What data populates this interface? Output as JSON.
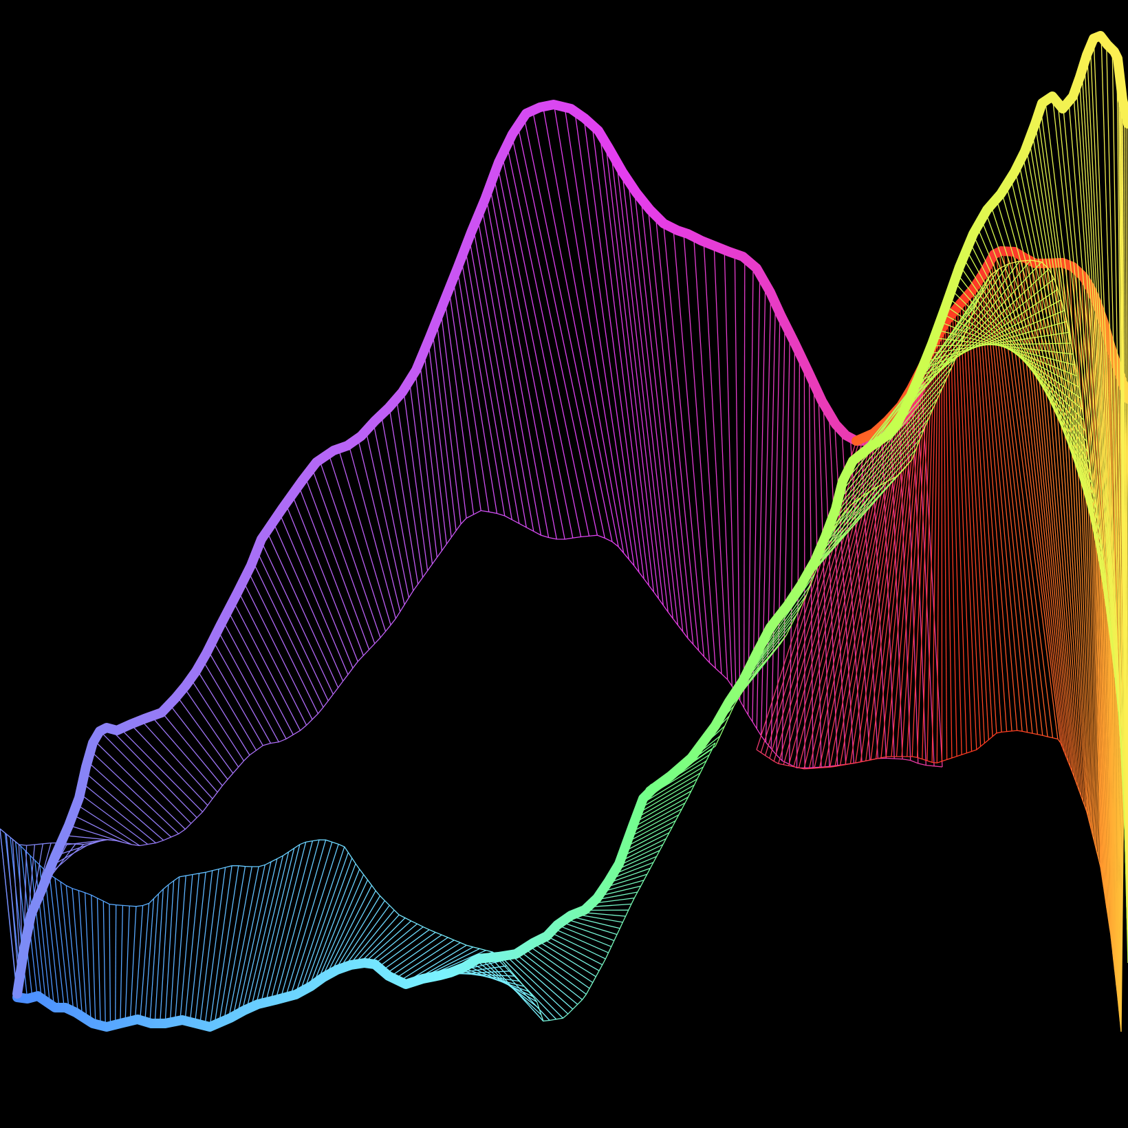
{
  "artwork": {
    "background_color": "#000000",
    "palette": [
      "#4c8dff",
      "#7af2ff",
      "#74ff86",
      "#c6ff4e",
      "#ffee52",
      "#ff3a22",
      "#ec3a9c",
      "#e43ef0",
      "#b468f6",
      "#7b8cf6"
    ],
    "ribbons": [
      {
        "name": "violet-magenta-ribbon",
        "colors": [
          "#7b8cf6",
          "#b468f6",
          "#e43ef0",
          "#ec3a9c"
        ]
      },
      {
        "name": "cyan-green-ribbon",
        "colors": [
          "#4c8dff",
          "#66c8ff",
          "#7af2ff",
          "#74ff86"
        ]
      },
      {
        "name": "lime-yellow-ribbon",
        "colors": [
          "#74ff86",
          "#c6ff4e",
          "#ffee52"
        ]
      },
      {
        "name": "red-orange-ribbon",
        "colors": [
          "#ec3a70",
          "#ff3a22",
          "#ff8a2a",
          "#ffc43a"
        ]
      }
    ]
  }
}
